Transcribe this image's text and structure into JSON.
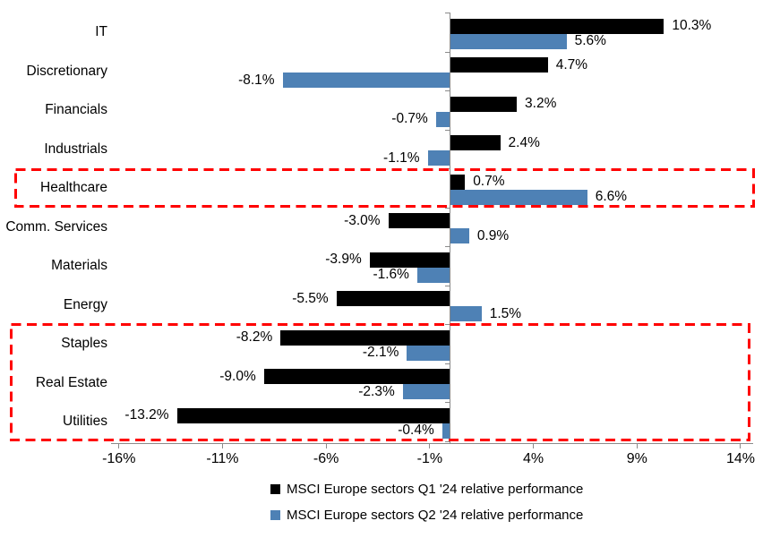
{
  "chart_data": {
    "type": "bar",
    "orientation": "horizontal",
    "title": "",
    "xlabel": "",
    "ylabel": "",
    "unit": "%",
    "categories": [
      "IT",
      "Discretionary",
      "Financials",
      "Industrials",
      "Healthcare",
      "Comm. Services",
      "Materials",
      "Energy",
      "Staples",
      "Real Estate",
      "Utilities"
    ],
    "series": [
      {
        "name": "MSCI Europe sectors Q1 '24 relative performance",
        "color": "#000000",
        "values": [
          10.3,
          4.7,
          3.2,
          2.4,
          0.7,
          -3.0,
          -3.9,
          -5.5,
          -8.2,
          -9.0,
          -13.2
        ],
        "labels": [
          "10.3%",
          "4.7%",
          "3.2%",
          "2.4%",
          "0.7%",
          "-3.0%",
          "-3.9%",
          "-5.5%",
          "-8.2%",
          "-9.0%",
          "-13.2%"
        ]
      },
      {
        "name": "MSCI Europe sectors Q2 '24 relative performance",
        "color": "#4E81B5",
        "values": [
          5.6,
          -8.1,
          -0.7,
          -1.1,
          6.6,
          0.9,
          -1.6,
          1.5,
          -2.1,
          -2.3,
          -0.4
        ],
        "labels": [
          "5.6%",
          "-8.1%",
          "-0.7%",
          "-1.1%",
          "6.6%",
          "0.9%",
          "-1.6%",
          "1.5%",
          "-2.1%",
          "-2.3%",
          "-0.4%"
        ]
      }
    ],
    "x_axis": {
      "tick_labels": [
        "-16%",
        "-11%",
        "-6%",
        "-1%",
        "4%",
        "9%",
        "14%"
      ],
      "tick_values": [
        -16,
        -11,
        -6,
        -1,
        4,
        9,
        14
      ],
      "min": -16.4,
      "max": 14.7,
      "grid": false
    },
    "legend_position": "bottom",
    "highlights": [
      {
        "categories": [
          "Healthcare"
        ],
        "color": "#FF0000",
        "style": "dashed"
      },
      {
        "categories": [
          "Staples",
          "Real Estate",
          "Utilities"
        ],
        "color": "#FF0000",
        "style": "dashed"
      }
    ]
  }
}
